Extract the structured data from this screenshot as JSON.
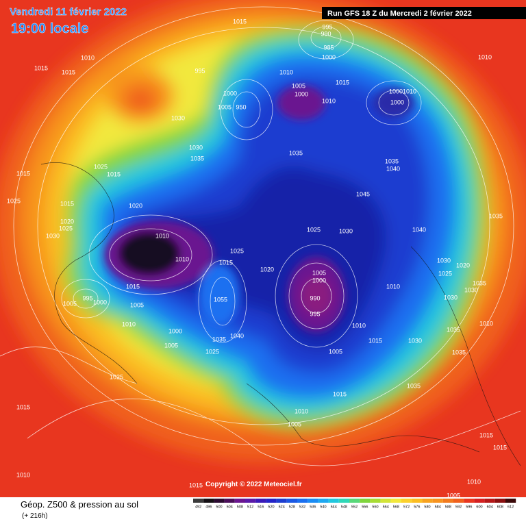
{
  "header": {
    "date": "Vendredi 11 février 2022",
    "time": "19:00 locale",
    "run": "Run GFS 18 Z du Mercredi 2 février 2022"
  },
  "copyright": "Copyright © 2022 Meteociel.fr",
  "footer": {
    "title": "Géop. Z500 & pression au sol",
    "lead": "(+ 216h)"
  },
  "scale_labels": [
    492,
    496,
    500,
    504,
    508,
    512,
    516,
    520,
    524,
    528,
    532,
    536,
    540,
    544,
    548,
    552,
    556,
    560,
    564,
    568,
    572,
    576,
    580,
    584,
    588,
    592,
    596,
    600,
    604,
    608,
    612
  ],
  "pressure_labels": [
    1015,
    995,
    990,
    985,
    1000,
    1010,
    1015,
    1015,
    995,
    1010,
    1015,
    1005,
    1000,
    1000,
    1010,
    1005,
    950,
    1000,
    1000,
    1010,
    1030,
    1030,
    1035,
    1035,
    1035,
    1040,
    1025,
    1015,
    1015,
    1045,
    1025,
    1015,
    1020,
    1035,
    1020,
    1025,
    1030,
    1025,
    1030,
    1040,
    1010,
    1025,
    1010,
    1015,
    1030,
    1020,
    1020,
    1025,
    1005,
    1000,
    1010,
    1015,
    1035,
    1030,
    995,
    990,
    1000,
    1005,
    1005,
    1030,
    1055,
    995,
    1010,
    1010,
    1010,
    1035,
    1000,
    1035,
    1040,
    1015,
    1030,
    1005,
    1025,
    1005,
    1035,
    1025,
    1035,
    1015,
    1015,
    1010,
    1005,
    1015,
    1015,
    1010,
    1015,
    1010,
    1005,
    1010
  ]
}
